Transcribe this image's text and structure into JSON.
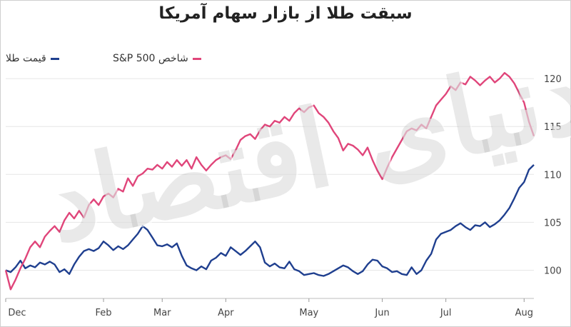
{
  "chart_data": {
    "type": "line",
    "title": "سبقت طلا از بازار سهام آمریکا",
    "watermark_text": "دنیای اقتصاد",
    "x_tick_labels": [
      "Dec",
      "Feb",
      "Mar",
      "Apr",
      "May",
      "Jun",
      "Jul",
      "Aug"
    ],
    "x_tick_positions": [
      0,
      20,
      32,
      45,
      62,
      77,
      90,
      106
    ],
    "y_ticks": [
      100,
      105,
      110,
      115,
      120
    ],
    "ylim": [
      97.5,
      121.5
    ],
    "xlim": [
      0,
      108
    ],
    "grid": "horizontal",
    "legend_position": "top-left",
    "series": [
      {
        "name": "قیمت طلا",
        "color": "#1f3f8f",
        "values": [
          [
            0,
            100.0
          ],
          [
            1,
            99.8
          ],
          [
            2,
            100.3
          ],
          [
            3,
            101.0
          ],
          [
            4,
            100.2
          ],
          [
            5,
            100.5
          ],
          [
            6,
            100.3
          ],
          [
            7,
            100.8
          ],
          [
            8,
            100.6
          ],
          [
            9,
            100.9
          ],
          [
            10,
            100.6
          ],
          [
            11,
            99.8
          ],
          [
            12,
            100.1
          ],
          [
            13,
            99.6
          ],
          [
            14,
            100.6
          ],
          [
            15,
            101.4
          ],
          [
            16,
            102.0
          ],
          [
            17,
            102.2
          ],
          [
            18,
            102.0
          ],
          [
            19,
            102.3
          ],
          [
            20,
            103.0
          ],
          [
            21,
            102.6
          ],
          [
            22,
            102.1
          ],
          [
            23,
            102.5
          ],
          [
            24,
            102.2
          ],
          [
            25,
            102.6
          ],
          [
            26,
            103.2
          ],
          [
            27,
            103.8
          ],
          [
            28,
            104.6
          ],
          [
            29,
            104.2
          ],
          [
            30,
            103.4
          ],
          [
            31,
            102.6
          ],
          [
            32,
            102.5
          ],
          [
            33,
            102.7
          ],
          [
            34,
            102.4
          ],
          [
            35,
            102.8
          ],
          [
            36,
            101.5
          ],
          [
            37,
            100.5
          ],
          [
            38,
            100.2
          ],
          [
            39,
            100.0
          ],
          [
            40,
            100.4
          ],
          [
            41,
            100.1
          ],
          [
            42,
            101.0
          ],
          [
            43,
            101.3
          ],
          [
            44,
            101.8
          ],
          [
            45,
            101.5
          ],
          [
            46,
            102.4
          ],
          [
            47,
            102.0
          ],
          [
            48,
            101.6
          ],
          [
            49,
            102.0
          ],
          [
            50,
            102.5
          ],
          [
            51,
            103.0
          ],
          [
            52,
            102.4
          ],
          [
            53,
            100.8
          ],
          [
            54,
            100.4
          ],
          [
            55,
            100.7
          ],
          [
            56,
            100.3
          ],
          [
            57,
            100.2
          ],
          [
            58,
            100.9
          ],
          [
            59,
            100.1
          ],
          [
            60,
            99.9
          ],
          [
            61,
            99.5
          ],
          [
            62,
            99.6
          ],
          [
            63,
            99.7
          ],
          [
            64,
            99.5
          ],
          [
            65,
            99.4
          ],
          [
            66,
            99.6
          ],
          [
            67,
            99.9
          ],
          [
            68,
            100.2
          ],
          [
            69,
            100.5
          ],
          [
            70,
            100.3
          ],
          [
            71,
            99.9
          ],
          [
            72,
            99.6
          ],
          [
            73,
            99.9
          ],
          [
            74,
            100.6
          ],
          [
            75,
            101.1
          ],
          [
            76,
            101.0
          ],
          [
            77,
            100.4
          ],
          [
            78,
            100.2
          ],
          [
            79,
            99.8
          ],
          [
            80,
            99.9
          ],
          [
            81,
            99.6
          ],
          [
            82,
            99.5
          ],
          [
            83,
            100.3
          ],
          [
            84,
            99.6
          ],
          [
            85,
            100.0
          ],
          [
            86,
            101.0
          ],
          [
            87,
            101.7
          ],
          [
            88,
            103.2
          ],
          [
            89,
            103.8
          ],
          [
            90,
            104.0
          ],
          [
            91,
            104.2
          ],
          [
            92,
            104.6
          ],
          [
            93,
            104.9
          ],
          [
            94,
            104.5
          ],
          [
            95,
            104.2
          ],
          [
            96,
            104.7
          ],
          [
            97,
            104.6
          ],
          [
            98,
            105.0
          ],
          [
            99,
            104.5
          ],
          [
            100,
            104.8
          ],
          [
            101,
            105.2
          ],
          [
            102,
            105.8
          ],
          [
            103,
            106.5
          ],
          [
            104,
            107.5
          ],
          [
            105,
            108.6
          ],
          [
            106,
            109.2
          ],
          [
            107,
            110.5
          ],
          [
            108,
            111.0
          ]
        ]
      },
      {
        "name": "شاخص S&P 500",
        "color": "#e0457a",
        "values": [
          [
            0,
            100.0
          ],
          [
            1,
            98.0
          ],
          [
            2,
            99.0
          ],
          [
            3,
            100.2
          ],
          [
            4,
            101.2
          ],
          [
            5,
            102.4
          ],
          [
            6,
            103.0
          ],
          [
            7,
            102.4
          ],
          [
            8,
            103.5
          ],
          [
            9,
            104.1
          ],
          [
            10,
            104.6
          ],
          [
            11,
            104.0
          ],
          [
            12,
            105.2
          ],
          [
            13,
            106.0
          ],
          [
            14,
            105.4
          ],
          [
            15,
            106.2
          ],
          [
            16,
            105.5
          ],
          [
            17,
            106.8
          ],
          [
            18,
            107.4
          ],
          [
            19,
            106.8
          ],
          [
            20,
            107.7
          ],
          [
            21,
            108.0
          ],
          [
            22,
            107.6
          ],
          [
            23,
            108.5
          ],
          [
            24,
            108.2
          ],
          [
            25,
            109.6
          ],
          [
            26,
            108.8
          ],
          [
            27,
            109.8
          ],
          [
            28,
            110.1
          ],
          [
            29,
            110.6
          ],
          [
            30,
            110.5
          ],
          [
            31,
            111.0
          ],
          [
            32,
            110.6
          ],
          [
            33,
            111.3
          ],
          [
            34,
            110.8
          ],
          [
            35,
            111.5
          ],
          [
            36,
            110.9
          ],
          [
            37,
            111.5
          ],
          [
            38,
            110.6
          ],
          [
            39,
            111.8
          ],
          [
            40,
            111.0
          ],
          [
            41,
            110.4
          ],
          [
            42,
            111.0
          ],
          [
            43,
            111.5
          ],
          [
            44,
            111.8
          ],
          [
            45,
            112.0
          ],
          [
            46,
            111.6
          ],
          [
            47,
            112.5
          ],
          [
            48,
            113.6
          ],
          [
            49,
            114.0
          ],
          [
            50,
            114.2
          ],
          [
            51,
            113.7
          ],
          [
            52,
            114.6
          ],
          [
            53,
            115.2
          ],
          [
            54,
            115.0
          ],
          [
            55,
            115.6
          ],
          [
            56,
            115.4
          ],
          [
            57,
            116.0
          ],
          [
            58,
            115.6
          ],
          [
            59,
            116.4
          ],
          [
            60,
            116.9
          ],
          [
            61,
            116.5
          ],
          [
            62,
            117.0
          ],
          [
            63,
            117.2
          ],
          [
            64,
            116.4
          ],
          [
            65,
            116.0
          ],
          [
            66,
            115.4
          ],
          [
            67,
            114.5
          ],
          [
            68,
            113.8
          ],
          [
            69,
            112.5
          ],
          [
            70,
            113.2
          ],
          [
            71,
            113.0
          ],
          [
            72,
            112.6
          ],
          [
            73,
            112.0
          ],
          [
            74,
            112.8
          ],
          [
            75,
            111.5
          ],
          [
            76,
            110.4
          ],
          [
            77,
            109.5
          ],
          [
            78,
            110.7
          ],
          [
            79,
            111.8
          ],
          [
            80,
            112.7
          ],
          [
            81,
            113.6
          ],
          [
            82,
            114.5
          ],
          [
            83,
            114.8
          ],
          [
            84,
            114.6
          ],
          [
            85,
            115.2
          ],
          [
            86,
            114.8
          ],
          [
            87,
            116.0
          ],
          [
            88,
            117.2
          ],
          [
            89,
            117.8
          ],
          [
            90,
            118.4
          ],
          [
            91,
            119.2
          ],
          [
            92,
            118.8
          ],
          [
            93,
            119.6
          ],
          [
            94,
            119.4
          ],
          [
            95,
            120.2
          ],
          [
            96,
            119.8
          ],
          [
            97,
            119.3
          ],
          [
            98,
            119.8
          ],
          [
            99,
            120.2
          ],
          [
            100,
            119.6
          ],
          [
            101,
            120.0
          ],
          [
            102,
            120.6
          ],
          [
            103,
            120.2
          ],
          [
            104,
            119.5
          ],
          [
            105,
            118.5
          ],
          [
            106,
            117.5
          ],
          [
            107,
            115.5
          ],
          [
            108,
            114.0
          ]
        ]
      }
    ]
  }
}
